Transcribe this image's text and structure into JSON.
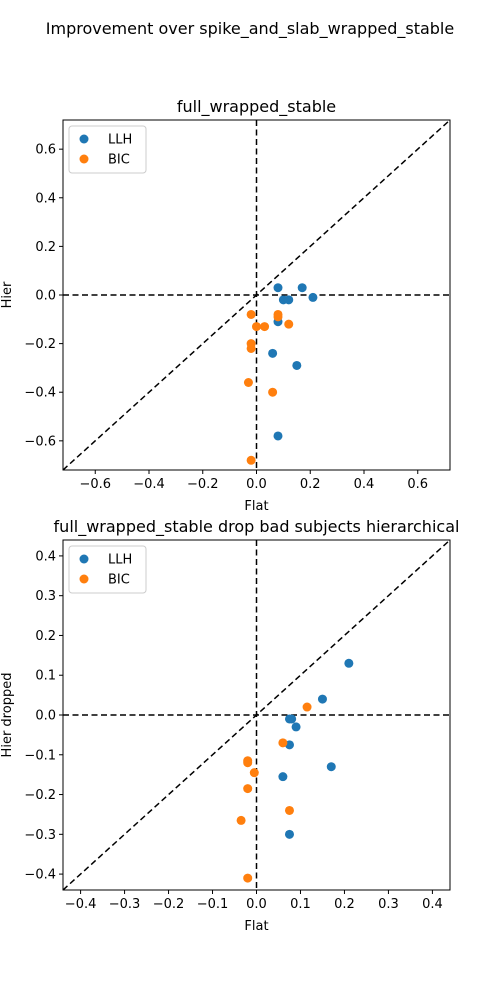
{
  "suptitle": "Improvement over spike_and_slab_wrapped_stable",
  "chart_data": [
    {
      "type": "scatter",
      "title": "full_wrapped_stable",
      "xlabel": "Flat",
      "ylabel": "Hier",
      "xlim": [
        -0.72,
        0.72
      ],
      "ylim": [
        -0.72,
        0.72
      ],
      "xticks": [
        -0.6,
        -0.4,
        -0.2,
        0.0,
        0.2,
        0.4,
        0.6
      ],
      "xtick_labels": [
        "−0.6",
        "−0.4",
        "−0.2",
        "0.0",
        "0.2",
        "0.4",
        "0.6"
      ],
      "yticks": [
        -0.6,
        -0.4,
        -0.2,
        0.0,
        0.2,
        0.4,
        0.6
      ],
      "ytick_labels": [
        "−0.6",
        "−0.4",
        "−0.2",
        "0.0",
        "0.2",
        "0.4",
        "0.6"
      ],
      "legend": "upper-left",
      "series": [
        {
          "name": "LLH",
          "color": "#1f77b4",
          "points": [
            [
              0.08,
              0.03
            ],
            [
              0.17,
              0.03
            ],
            [
              0.1,
              -0.02
            ],
            [
              0.12,
              -0.02
            ],
            [
              0.21,
              -0.01
            ],
            [
              0.08,
              -0.11
            ],
            [
              0.06,
              -0.24
            ],
            [
              0.15,
              -0.29
            ],
            [
              0.08,
              -0.58
            ]
          ]
        },
        {
          "name": "BIC",
          "color": "#ff7f0e",
          "points": [
            [
              -0.02,
              -0.08
            ],
            [
              0.08,
              -0.09
            ],
            [
              0.08,
              -0.08
            ],
            [
              0.12,
              -0.12
            ],
            [
              0.0,
              -0.13
            ],
            [
              0.03,
              -0.13
            ],
            [
              -0.02,
              -0.2
            ],
            [
              -0.02,
              -0.22
            ],
            [
              -0.03,
              -0.36
            ],
            [
              0.06,
              -0.4
            ],
            [
              -0.02,
              -0.68
            ]
          ]
        }
      ]
    },
    {
      "type": "scatter",
      "title": "full_wrapped_stable drop bad subjects hierarchical",
      "xlabel": "Flat",
      "ylabel": "Hier dropped",
      "xlim": [
        -0.44,
        0.44
      ],
      "ylim": [
        -0.44,
        0.44
      ],
      "xticks": [
        -0.4,
        -0.3,
        -0.2,
        -0.1,
        0.0,
        0.1,
        0.2,
        0.3,
        0.4
      ],
      "xtick_labels": [
        "−0.4",
        "−0.3",
        "−0.2",
        "−0.1",
        "0.0",
        "0.1",
        "0.2",
        "0.3",
        "0.4"
      ],
      "yticks": [
        -0.4,
        -0.3,
        -0.2,
        -0.1,
        0.0,
        0.1,
        0.2,
        0.3,
        0.4
      ],
      "ytick_labels": [
        "−0.4",
        "−0.3",
        "−0.2",
        "−0.1",
        "0.0",
        "0.1",
        "0.2",
        "0.3",
        "0.4"
      ],
      "legend": "upper-left",
      "series": [
        {
          "name": "LLH",
          "color": "#1f77b4",
          "points": [
            [
              0.21,
              0.13
            ],
            [
              0.15,
              0.04
            ],
            [
              0.08,
              -0.01
            ],
            [
              0.075,
              -0.01
            ],
            [
              0.09,
              -0.03
            ],
            [
              0.075,
              -0.075
            ],
            [
              0.17,
              -0.13
            ],
            [
              0.06,
              -0.155
            ],
            [
              0.075,
              -0.3
            ]
          ]
        },
        {
          "name": "BIC",
          "color": "#ff7f0e",
          "points": [
            [
              0.115,
              0.02
            ],
            [
              0.06,
              -0.07
            ],
            [
              -0.02,
              -0.115
            ],
            [
              -0.02,
              -0.12
            ],
            [
              -0.005,
              -0.145
            ],
            [
              -0.02,
              -0.185
            ],
            [
              0.075,
              -0.24
            ],
            [
              -0.035,
              -0.265
            ],
            [
              -0.02,
              -0.41
            ]
          ]
        }
      ]
    }
  ]
}
